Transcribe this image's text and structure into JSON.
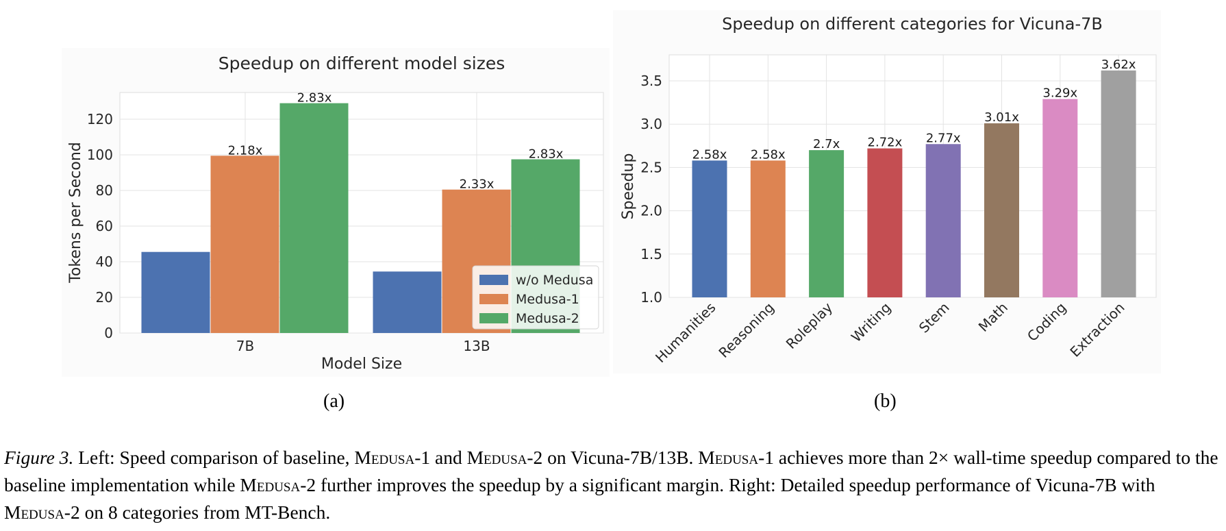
{
  "colors": {
    "blue": "#4c72b0",
    "orange": "#dd8452",
    "green": "#55a868",
    "red": "#c44e52",
    "purple": "#8172b3",
    "brown": "#937860",
    "pink": "#da8bc3",
    "gray": "#8c8c8c"
  },
  "chart_data": [
    {
      "type": "bar",
      "title": "Speedup on different model sizes",
      "xlabel": "Model Size",
      "ylabel": "Tokens per Second",
      "categories": [
        "7B",
        "13B"
      ],
      "ylim": [
        0,
        135
      ],
      "yticks": [
        0,
        20,
        40,
        60,
        80,
        100,
        120
      ],
      "grid": true,
      "legend_position": "lower-right",
      "series": [
        {
          "name": "w/o Medusa",
          "color": "#4c72b0",
          "values": [
            45.5,
            34.5
          ],
          "labels": [
            "",
            ""
          ]
        },
        {
          "name": "Medusa-1",
          "color": "#dd8452",
          "values": [
            99.5,
            80.5
          ],
          "labels": [
            "2.18x",
            "2.33x"
          ]
        },
        {
          "name": "Medusa-2",
          "color": "#55a868",
          "values": [
            129,
            97.5
          ],
          "labels": [
            "2.83x",
            "2.83x"
          ]
        }
      ]
    },
    {
      "type": "bar",
      "title": "Speedup on different categories for Vicuna-7B",
      "xlabel": "",
      "ylabel": "Speedup",
      "categories": [
        "Humanities",
        "Reasoning",
        "Roleplay",
        "Writing",
        "Stem",
        "Math",
        "Coding",
        "Extraction"
      ],
      "values": [
        2.58,
        2.58,
        2.7,
        2.72,
        2.77,
        3.01,
        3.29,
        3.62
      ],
      "labels": [
        "2.58x",
        "2.58x",
        "2.7x",
        "2.72x",
        "2.77x",
        "3.01x",
        "3.29x",
        "3.62x"
      ],
      "bar_colors": [
        "#4c72b0",
        "#dd8452",
        "#55a868",
        "#c44e52",
        "#8172b3",
        "#937860",
        "#da8bc3",
        "#a0a0a0"
      ],
      "ylim": [
        1.0,
        3.8
      ],
      "yticks": [
        1.0,
        1.5,
        2.0,
        2.5,
        3.0,
        3.5
      ],
      "grid": true
    }
  ],
  "subcaptions": {
    "left": "(a)",
    "right": "(b)"
  },
  "caption": {
    "label": "Figure 3.",
    "text_1": " Left: Speed comparison of baseline, ",
    "medusa_1a": "Medusa",
    "text_2": "-1 and ",
    "medusa_2a": "Medusa",
    "text_3": "-2 on Vicuna-7B/13B. ",
    "medusa_1b": "Medusa",
    "text_4": "-1 achieves more than 2× wall-time speedup compared to the baseline implementation while ",
    "medusa_2b": "Medusa",
    "text_5": "-2 further improves the speedup by a significant margin. Right: Detailed speedup performance of Vicuna-7B with ",
    "medusa_2c": "Medusa",
    "text_6": "-2 on 8 categories from MT-Bench."
  }
}
